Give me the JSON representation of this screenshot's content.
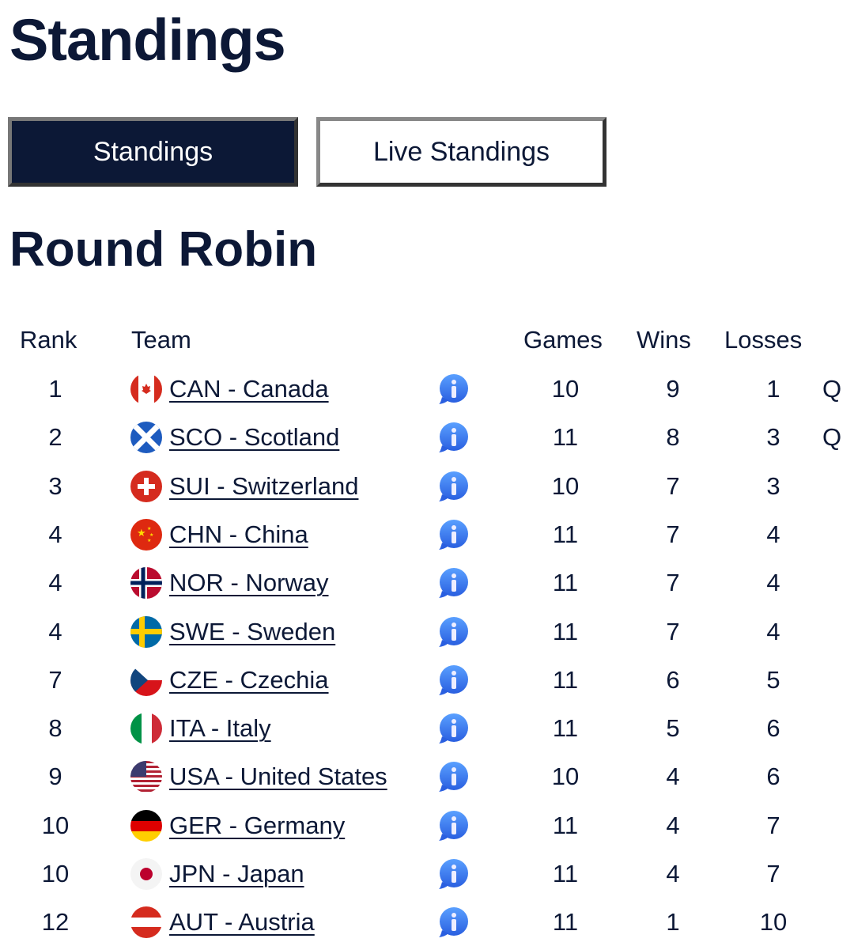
{
  "page_title": "Standings",
  "tabs": [
    {
      "label": "Standings",
      "active": true
    },
    {
      "label": "Live Standings",
      "active": false
    }
  ],
  "section_title": "Round Robin",
  "columns": {
    "rank": "Rank",
    "team": "Team",
    "games": "Games",
    "wins": "Wins",
    "losses": "Losses"
  },
  "colors": {
    "navy": "#0c1836",
    "info_blue": "#3a78f0"
  },
  "rows": [
    {
      "rank": "1",
      "code": "CAN",
      "team": "CAN - Canada",
      "games": "10",
      "wins": "9",
      "losses": "1",
      "q": "Q"
    },
    {
      "rank": "2",
      "code": "SCO",
      "team": "SCO - Scotland",
      "games": "11",
      "wins": "8",
      "losses": "3",
      "q": "Q"
    },
    {
      "rank": "3",
      "code": "SUI",
      "team": "SUI - Switzerland",
      "games": "10",
      "wins": "7",
      "losses": "3",
      "q": ""
    },
    {
      "rank": "4",
      "code": "CHN",
      "team": "CHN - China",
      "games": "11",
      "wins": "7",
      "losses": "4",
      "q": ""
    },
    {
      "rank": "4",
      "code": "NOR",
      "team": "NOR - Norway",
      "games": "11",
      "wins": "7",
      "losses": "4",
      "q": ""
    },
    {
      "rank": "4",
      "code": "SWE",
      "team": "SWE - Sweden",
      "games": "11",
      "wins": "7",
      "losses": "4",
      "q": ""
    },
    {
      "rank": "7",
      "code": "CZE",
      "team": "CZE - Czechia",
      "games": "11",
      "wins": "6",
      "losses": "5",
      "q": ""
    },
    {
      "rank": "8",
      "code": "ITA",
      "team": "ITA - Italy",
      "games": "11",
      "wins": "5",
      "losses": "6",
      "q": ""
    },
    {
      "rank": "9",
      "code": "USA",
      "team": "USA - United States",
      "games": "10",
      "wins": "4",
      "losses": "6",
      "q": ""
    },
    {
      "rank": "10",
      "code": "GER",
      "team": "GER - Germany",
      "games": "11",
      "wins": "4",
      "losses": "7",
      "q": ""
    },
    {
      "rank": "10",
      "code": "JPN",
      "team": "JPN - Japan",
      "games": "11",
      "wins": "4",
      "losses": "7",
      "q": ""
    },
    {
      "rank": "12",
      "code": "AUT",
      "team": "AUT - Austria",
      "games": "11",
      "wins": "1",
      "losses": "10",
      "q": ""
    }
  ]
}
